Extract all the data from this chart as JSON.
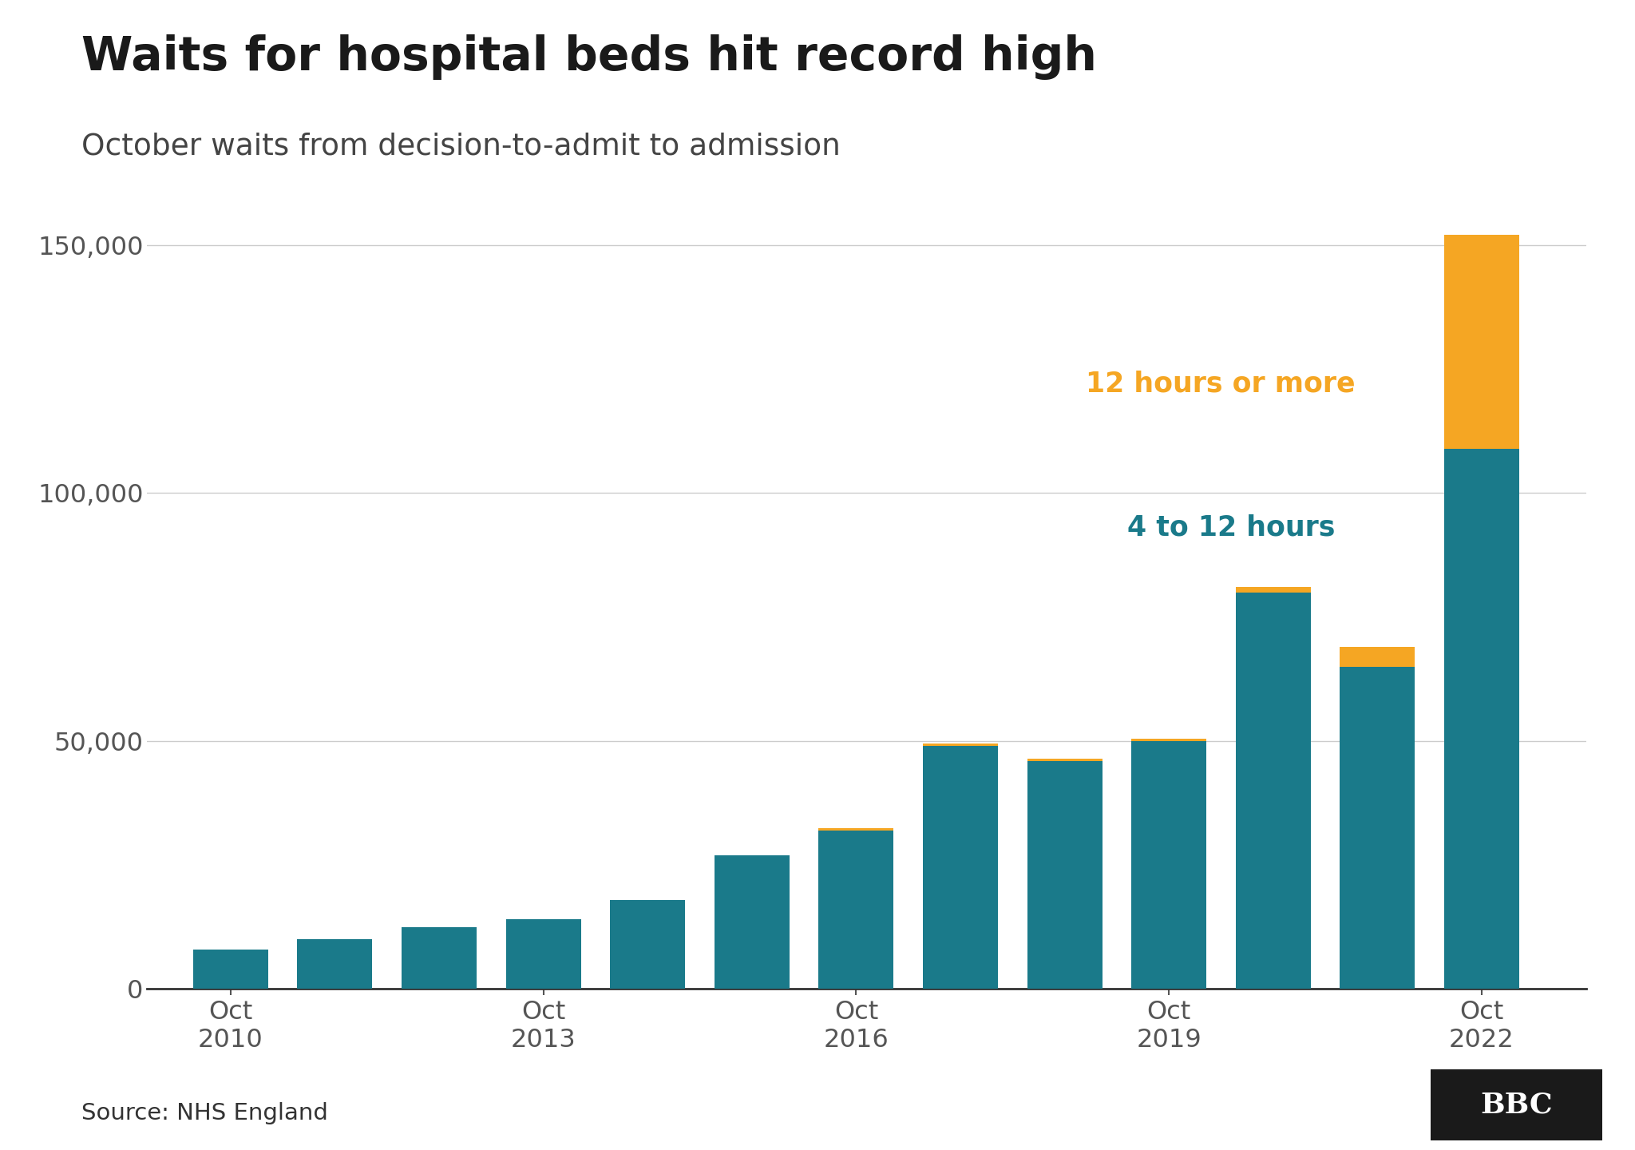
{
  "title": "Waits for hospital beds hit record high",
  "subtitle": "October waits from decision-to-admit to admission",
  "source": "Source: NHS England",
  "teal_color": "#1a7a8a",
  "orange_color": "#f5a623",
  "background_color": "#ffffff",
  "label_4to12": "4 to 12 hours",
  "label_12plus": "12 hours or more",
  "x_positions": [
    2010,
    2011,
    2012,
    2013,
    2014,
    2015,
    2016,
    2017,
    2018,
    2019,
    2020,
    2021,
    2022
  ],
  "teal_values": [
    8000,
    10000,
    12500,
    14000,
    18000,
    27000,
    32000,
    49000,
    46000,
    50000,
    80000,
    65000,
    109000
  ],
  "orange_values": [
    0,
    0,
    0,
    0,
    0,
    0,
    500,
    500,
    500,
    500,
    1000,
    4000,
    43000
  ],
  "xlim": [
    2009.2,
    2023.0
  ],
  "ylim": [
    0,
    160000
  ],
  "yticks": [
    0,
    50000,
    100000,
    150000
  ],
  "x_tick_years": [
    2010,
    2013,
    2016,
    2019,
    2022
  ],
  "x_tick_labels": [
    "Oct\n2010",
    "Oct\n2013",
    "Oct\n2016",
    "Oct\n2019",
    "Oct\n2022"
  ],
  "bar_width": 0.72,
  "title_fontsize": 42,
  "subtitle_fontsize": 27,
  "tick_fontsize": 23,
  "source_fontsize": 21,
  "annotation_fontsize": 25
}
